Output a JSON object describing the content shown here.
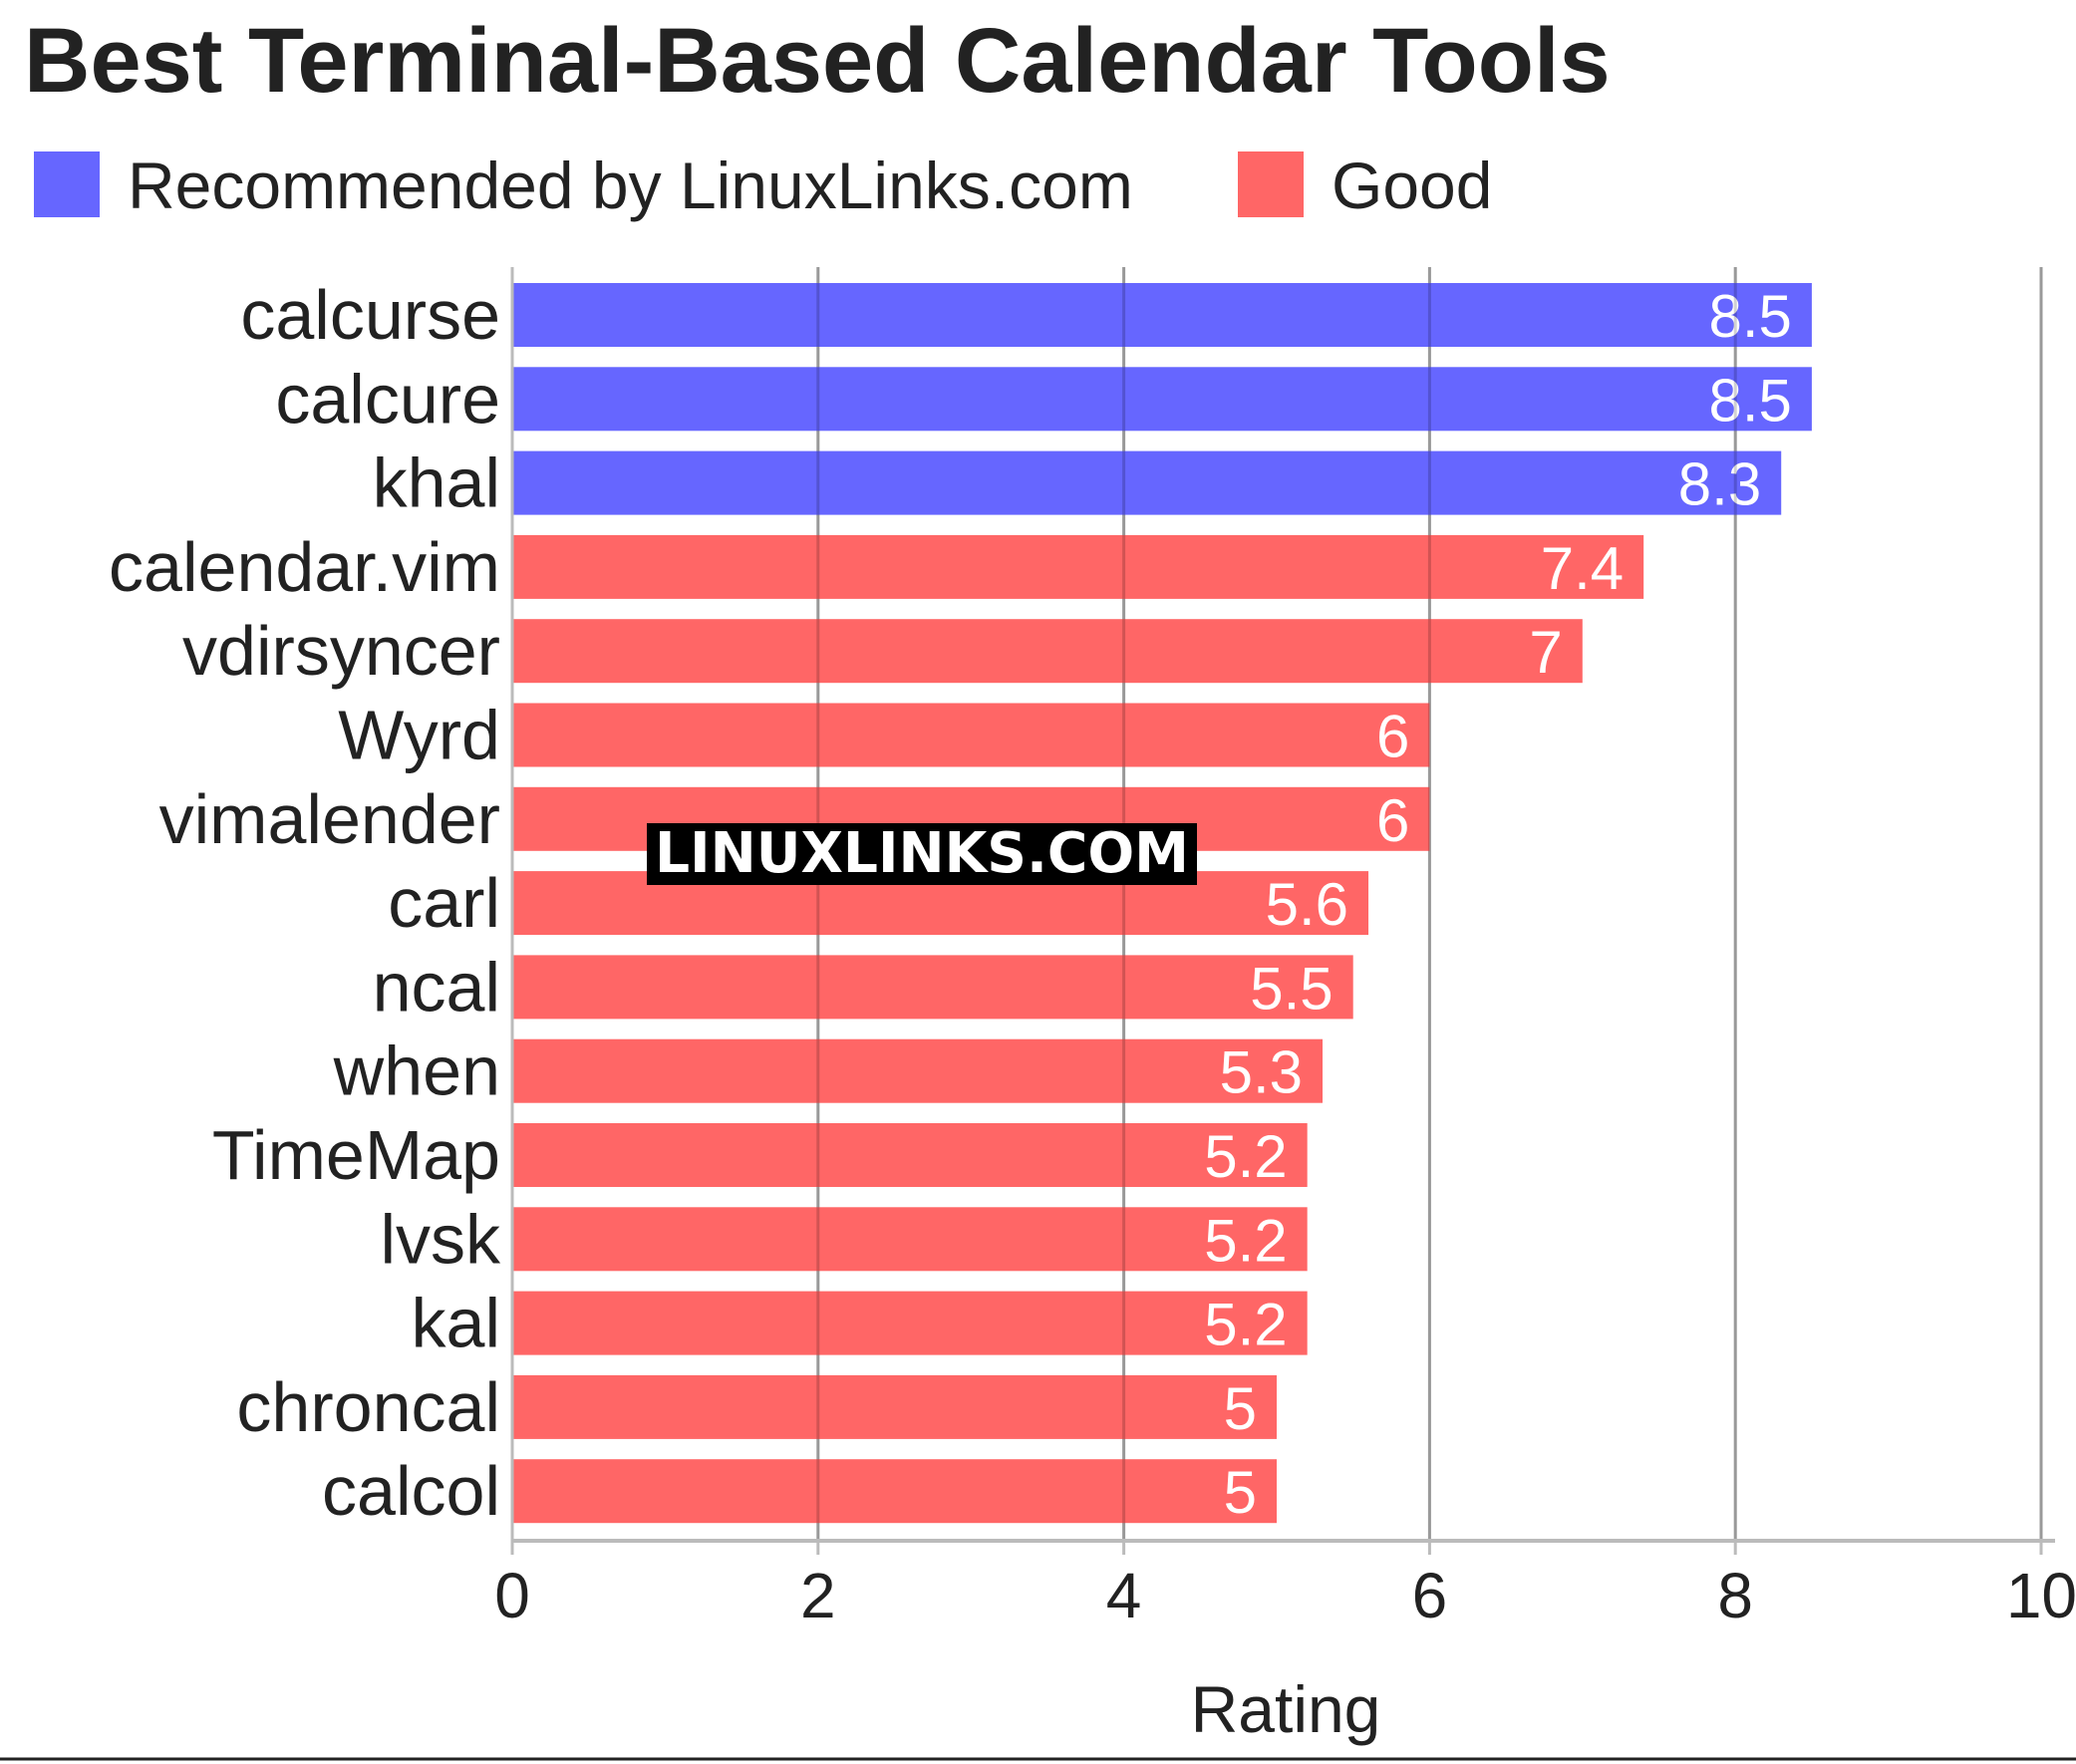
{
  "chart_data": {
    "type": "bar",
    "orientation": "horizontal",
    "title": "Best Terminal-Based Calendar Tools",
    "xlabel": "Rating",
    "ylabel": "",
    "xlim": [
      0,
      10
    ],
    "xticks": [
      "0",
      "2",
      "4",
      "6",
      "8",
      "10"
    ],
    "grid": true,
    "legend": {
      "placement": "top-left",
      "entries": [
        {
          "name": "Recommended by LinuxLinks.com",
          "color": "#6666ff"
        },
        {
          "name": "Good",
          "color": "#ff6666"
        }
      ]
    },
    "categories": [
      "calcurse",
      "calcure",
      "khal",
      "calendar.vim",
      "vdirsyncer",
      "Wyrd",
      "vimalender",
      "carl",
      "ncal",
      "when",
      "TimeMap",
      "lvsk",
      "kal",
      "chroncal",
      "calcol"
    ],
    "values": [
      8.5,
      8.5,
      8.3,
      7.4,
      7,
      6,
      6,
      5.6,
      5.5,
      5.3,
      5.2,
      5.2,
      5.2,
      5,
      5
    ],
    "value_labels": [
      "8.5",
      "8.5",
      "8.3",
      "7.4",
      "7",
      "6",
      "6",
      "5.6",
      "5.5",
      "5.3",
      "5.2",
      "5.2",
      "5.2",
      "5",
      "5"
    ],
    "group": [
      "Recommended by LinuxLinks.com",
      "Recommended by LinuxLinks.com",
      "Recommended by LinuxLinks.com",
      "Good",
      "Good",
      "Good",
      "Good",
      "Good",
      "Good",
      "Good",
      "Good",
      "Good",
      "Good",
      "Good",
      "Good"
    ]
  },
  "watermark": "LINUXLINKS.COM",
  "colors": {
    "recommended": "#6666ff",
    "good": "#ff6666",
    "grid": "#bbbbbb",
    "text": "#222222"
  }
}
